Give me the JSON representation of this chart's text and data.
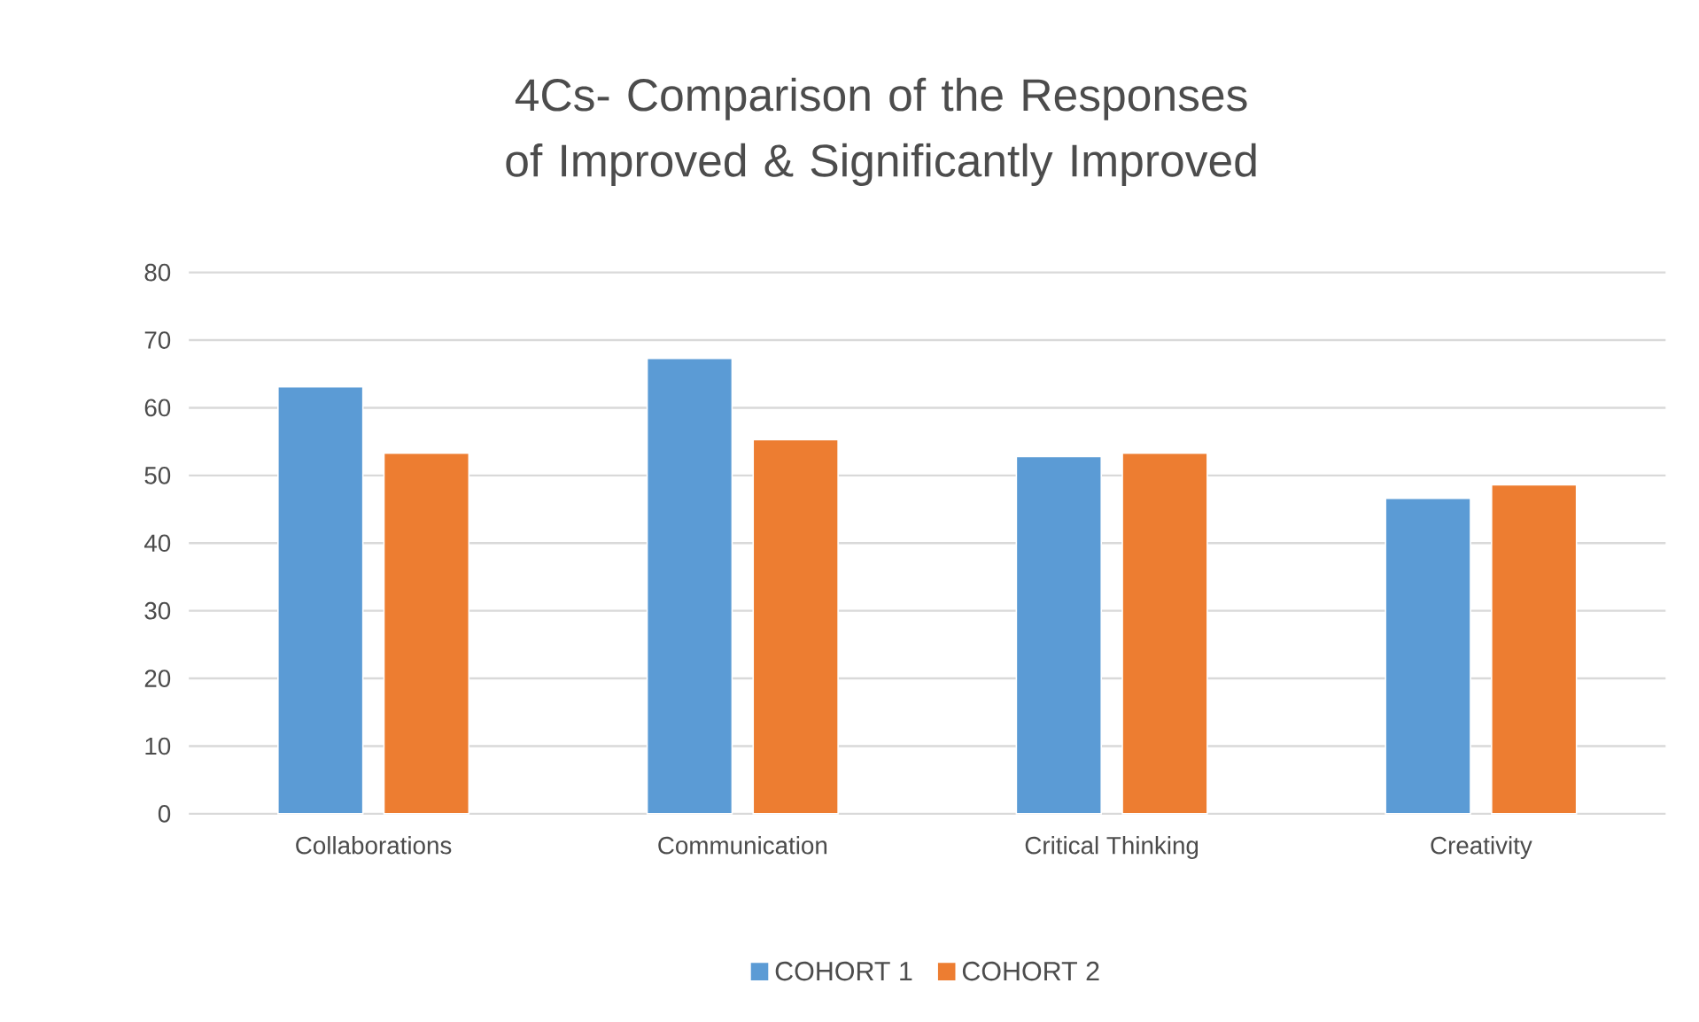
{
  "chart_data": {
    "type": "bar",
    "title": "4Cs- Comparison of the Responses of Improved & Significantly Improved",
    "categories": [
      "Collaborations",
      "Communication",
      "Critical Thinking",
      "Creativity"
    ],
    "series": [
      {
        "name": "COHORT 1",
        "color": "#5b9bd5",
        "values": [
          63.1,
          67.3,
          52.8,
          46.6
        ]
      },
      {
        "name": "COHORT 2",
        "color": "#ed7d31",
        "values": [
          53.3,
          55.3,
          53.3,
          48.6
        ]
      }
    ],
    "ylim": [
      0,
      80
    ],
    "yticks": [
      0,
      10,
      20,
      30,
      40,
      50,
      60,
      70,
      80
    ],
    "grid": "y",
    "legend": "bottom"
  }
}
